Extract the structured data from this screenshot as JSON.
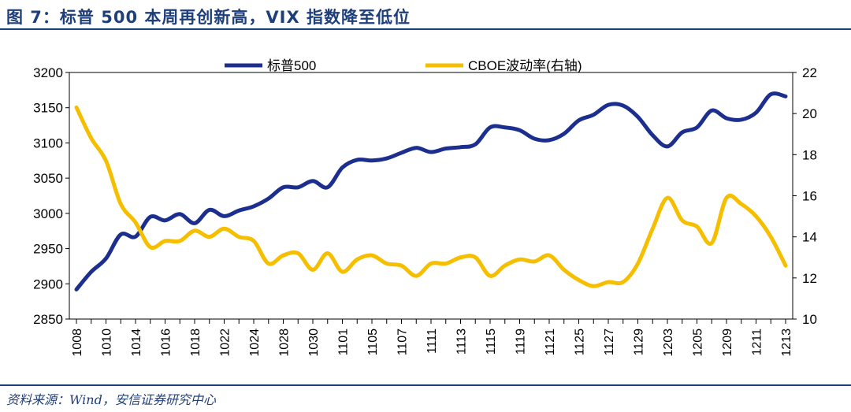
{
  "title": "图 7：标普 500 本周再创新高，VIX 指数降至低位",
  "source": "资料来源：Wind，安信证券研究中心",
  "chart_data": {
    "type": "line",
    "title": "图 7：标普 500 本周再创新高，VIX 指数降至低位",
    "x_tick_labels": [
      "1008",
      "1010",
      "1014",
      "1016",
      "1018",
      "1022",
      "1024",
      "1028",
      "1030",
      "1101",
      "1105",
      "1107",
      "1111",
      "1113",
      "1115",
      "1119",
      "1121",
      "1125",
      "1127",
      "1129",
      "1203",
      "1205",
      "1209",
      "1211",
      "1213"
    ],
    "left_axis": {
      "ylim": [
        2850,
        3200
      ],
      "ticks": [
        2850,
        2900,
        2950,
        3000,
        3050,
        3100,
        3150,
        3200
      ]
    },
    "right_axis": {
      "ylim": [
        10,
        22
      ],
      "ticks": [
        10,
        12,
        14,
        16,
        18,
        20,
        22
      ]
    },
    "legend_position": "top",
    "series": [
      {
        "name": "标普500",
        "axis": "left",
        "color": "#1c2f8f",
        "values": [
          2892,
          2917,
          2936,
          2970,
          2967,
          2995,
          2990,
          2999,
          2986,
          3005,
          2996,
          3004,
          3010,
          3021,
          3037,
          3037,
          3046,
          3037,
          3065,
          3076,
          3075,
          3078,
          3086,
          3093,
          3087,
          3092,
          3094,
          3098,
          3122,
          3122,
          3118,
          3106,
          3104,
          3113,
          3132,
          3140,
          3154,
          3153,
          3137,
          3111,
          3095,
          3115,
          3122,
          3146,
          3135,
          3133,
          3143,
          3169,
          3166
        ]
      },
      {
        "name": "CBOE波动率(右轴)",
        "axis": "right",
        "color": "#f5bf00",
        "values": [
          20.3,
          18.8,
          17.7,
          15.6,
          14.7,
          13.5,
          13.8,
          13.8,
          14.3,
          14.0,
          14.4,
          14.0,
          13.8,
          12.7,
          13.1,
          13.2,
          12.4,
          13.2,
          12.3,
          12.9,
          13.1,
          12.7,
          12.6,
          12.1,
          12.7,
          12.7,
          13.0,
          13.0,
          12.1,
          12.6,
          12.9,
          12.8,
          13.1,
          12.4,
          11.9,
          11.6,
          11.8,
          11.8,
          12.7,
          14.4,
          15.9,
          14.8,
          14.5,
          13.7,
          15.9,
          15.6,
          15.0,
          14.0,
          12.6
        ]
      }
    ]
  }
}
